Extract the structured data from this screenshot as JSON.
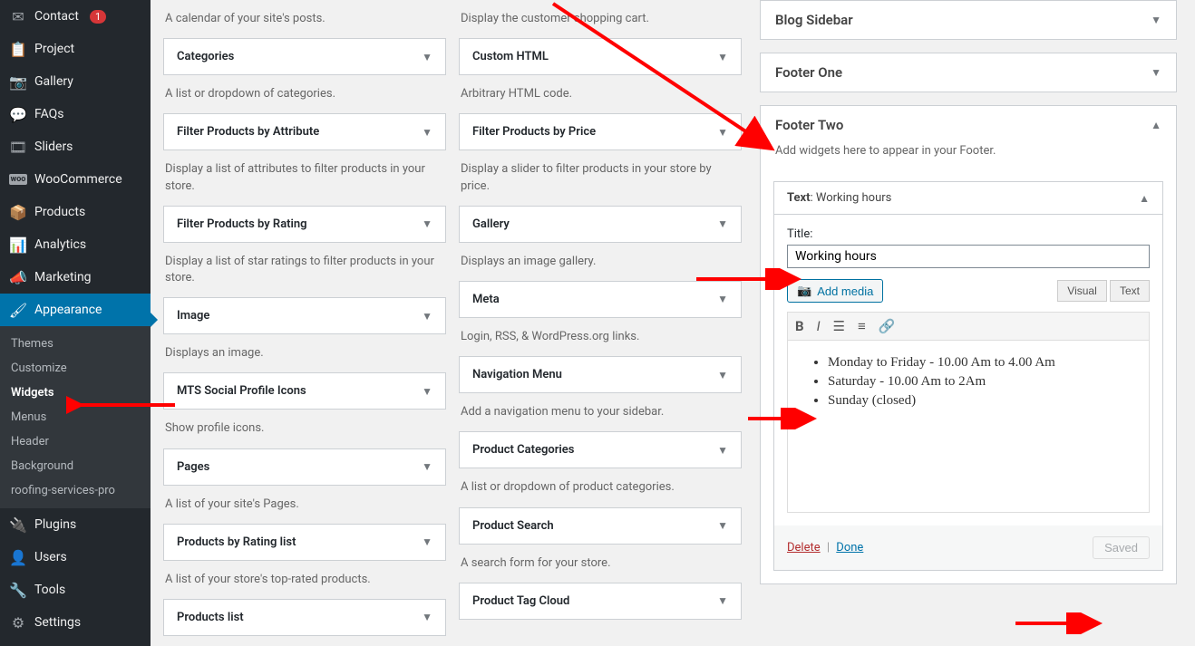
{
  "sidebar": {
    "items": [
      {
        "icon": "✉",
        "label": "Contact",
        "badge": "1"
      },
      {
        "icon": "📋",
        "label": "Project"
      },
      {
        "icon": "📷",
        "label": "Gallery"
      },
      {
        "icon": "💬",
        "label": "FAQs"
      },
      {
        "icon": "🎞",
        "label": "Sliders"
      },
      {
        "icon": "woo",
        "label": "WooCommerce"
      },
      {
        "icon": "📦",
        "label": "Products"
      },
      {
        "icon": "📊",
        "label": "Analytics"
      },
      {
        "icon": "📣",
        "label": "Marketing"
      },
      {
        "icon": "🖌",
        "label": "Appearance",
        "active": true
      },
      {
        "icon": "🔌",
        "label": "Plugins"
      },
      {
        "icon": "👤",
        "label": "Users"
      },
      {
        "icon": "🔧",
        "label": "Tools"
      },
      {
        "icon": "⚙",
        "label": "Settings"
      }
    ],
    "submenu": [
      "Themes",
      "Customize",
      "Widgets",
      "Menus",
      "Header",
      "Background",
      "roofing-services-pro"
    ],
    "submenu_current": "Widgets"
  },
  "available_widgets": {
    "col1": [
      {
        "desc": "A calendar of your site's posts.",
        "title": "Categories"
      },
      {
        "desc": "A list or dropdown of categories.",
        "title": "Filter Products by Attribute"
      },
      {
        "desc": "Display a list of attributes to filter products in your store.",
        "title": "Filter Products by Rating"
      },
      {
        "desc": "Display a list of star ratings to filter products in your store.",
        "title": "Image"
      },
      {
        "desc": "Displays an image.",
        "title": "MTS Social Profile Icons"
      },
      {
        "desc": "Show profile icons.",
        "title": "Pages"
      },
      {
        "desc": "A list of your site's Pages.",
        "title": "Products by Rating list"
      },
      {
        "desc": "A list of your store's top-rated products.",
        "title": "Products list"
      }
    ],
    "col2": [
      {
        "desc": "Display the customer shopping cart.",
        "title": "Custom HTML"
      },
      {
        "desc": "Arbitrary HTML code.",
        "title": "Filter Products by Price"
      },
      {
        "desc": "Display a slider to filter products in your store by price.",
        "title": "Gallery"
      },
      {
        "desc": "Displays an image gallery.",
        "title": "Meta"
      },
      {
        "desc": "Login, RSS, & WordPress.org links.",
        "title": "Navigation Menu"
      },
      {
        "desc": "Add a navigation menu to your sidebar.",
        "title": "Product Categories"
      },
      {
        "desc": "A list or dropdown of product categories.",
        "title": "Product Search"
      },
      {
        "desc": "A search form for your store.",
        "title": "Product Tag Cloud"
      }
    ]
  },
  "widget_areas": {
    "blog_sidebar": "Blog Sidebar",
    "footer_one": "Footer One",
    "footer_two": "Footer Two",
    "footer_two_desc": "Add widgets here to appear in your Footer."
  },
  "text_widget": {
    "header_prefix": "Text",
    "header_suffix": ": Working hours",
    "title_label": "Title:",
    "title_value": "Working hours",
    "add_media": "Add media",
    "tabs": {
      "visual": "Visual",
      "text": "Text"
    },
    "content": [
      "Monday to Friday - 10.00 Am to 4.00 Am",
      "Saturday - 10.00 Am to  2Am",
      "Sunday (closed)"
    ],
    "delete": "Delete",
    "done": "Done",
    "saved": "Saved"
  },
  "colors": {
    "accent": "#0073aa",
    "red_arrow": "#ff0000"
  }
}
